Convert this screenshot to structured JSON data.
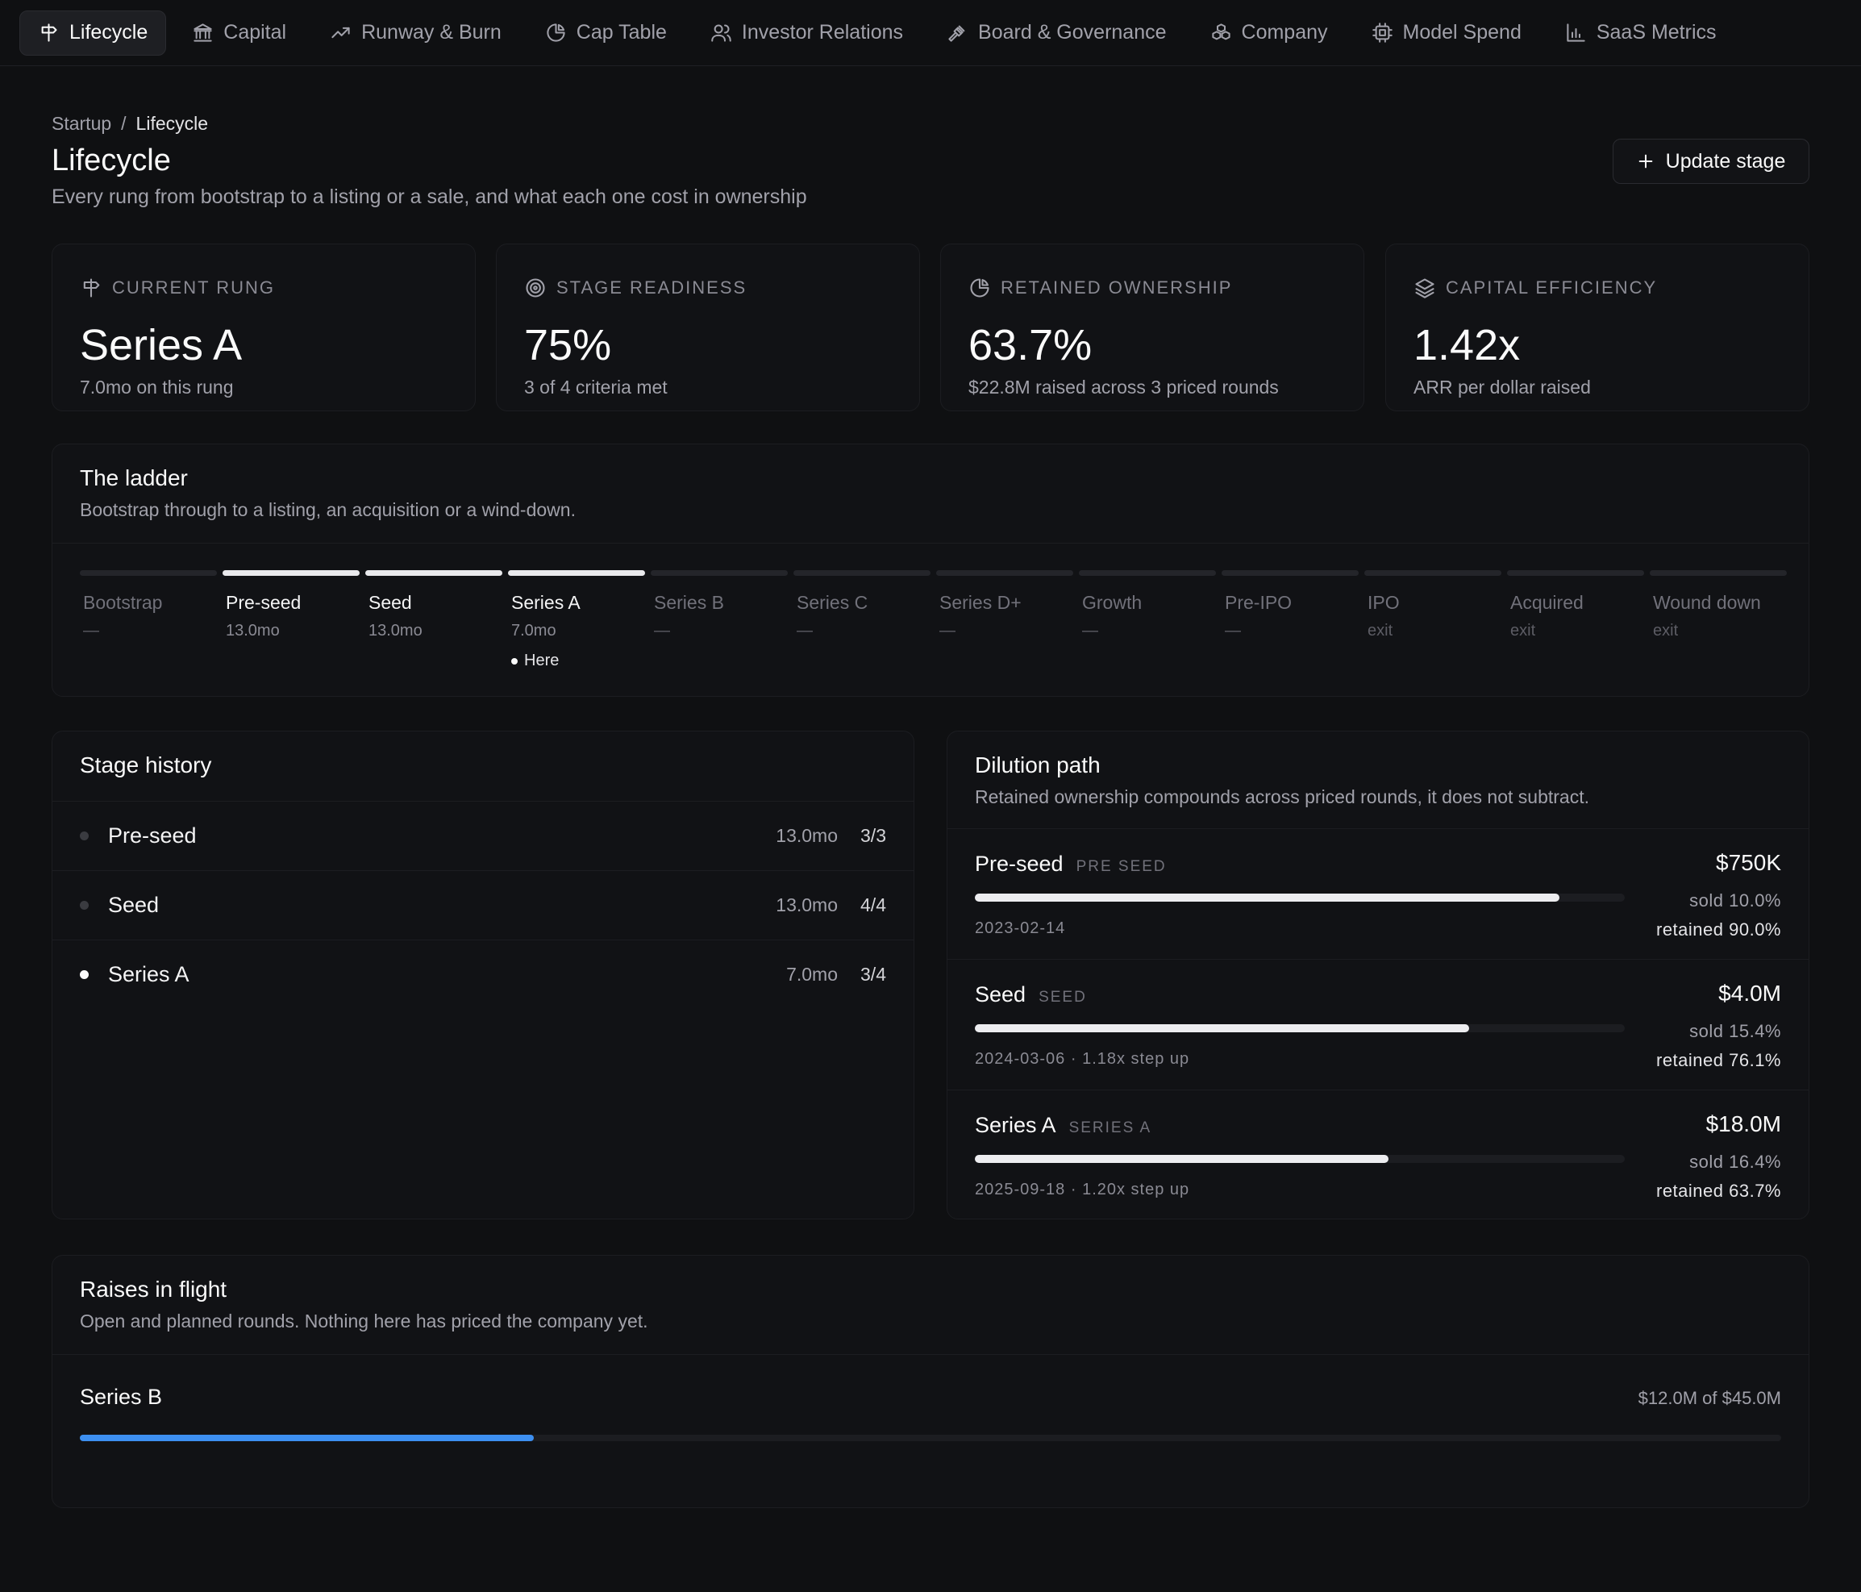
{
  "nav": {
    "tabs": [
      {
        "label": "Lifecycle",
        "icon": "signpost-icon",
        "active": true
      },
      {
        "label": "Capital",
        "icon": "bank-icon"
      },
      {
        "label": "Runway & Burn",
        "icon": "trending-up-icon"
      },
      {
        "label": "Cap Table",
        "icon": "pie-chart-icon"
      },
      {
        "label": "Investor Relations",
        "icon": "users-icon"
      },
      {
        "label": "Board & Governance",
        "icon": "gavel-icon"
      },
      {
        "label": "Company",
        "icon": "boxes-icon"
      },
      {
        "label": "Model Spend",
        "icon": "cpu-icon"
      },
      {
        "label": "SaaS Metrics",
        "icon": "bar-chart-icon"
      }
    ]
  },
  "header": {
    "breadcrumb_root": "Startup",
    "breadcrumb_sep": "/",
    "breadcrumb_current": "Lifecycle",
    "title": "Lifecycle",
    "subtitle": "Every rung from bootstrap to a listing or a sale, and what each one cost in ownership",
    "update_button": "Update stage"
  },
  "stats": [
    {
      "label": "CURRENT RUNG",
      "value": "Series A",
      "sub": "7.0mo on this rung",
      "icon": "signpost-icon"
    },
    {
      "label": "STAGE READINESS",
      "value": "75%",
      "sub": "3 of 4 criteria met",
      "icon": "target-icon"
    },
    {
      "label": "RETAINED OWNERSHIP",
      "value": "63.7%",
      "sub": "$22.8M raised across 3 priced rounds",
      "icon": "pie-chart-icon"
    },
    {
      "label": "CAPITAL EFFICIENCY",
      "value": "1.42x",
      "sub": "ARR per dollar raised",
      "icon": "layers-icon"
    }
  ],
  "ladder": {
    "title": "The ladder",
    "description": "Bootstrap through to a listing, an acquisition or a wind-down.",
    "here_label": "Here",
    "rungs": [
      {
        "name": "Bootstrap",
        "duration": "—",
        "done": false
      },
      {
        "name": "Pre-seed",
        "duration": "13.0mo",
        "done": true
      },
      {
        "name": "Seed",
        "duration": "13.0mo",
        "done": true
      },
      {
        "name": "Series A",
        "duration": "7.0mo",
        "done": true,
        "current": true
      },
      {
        "name": "Series B",
        "duration": "—",
        "done": false
      },
      {
        "name": "Series C",
        "duration": "—",
        "done": false
      },
      {
        "name": "Series D+",
        "duration": "—",
        "done": false
      },
      {
        "name": "Growth",
        "duration": "—",
        "done": false
      },
      {
        "name": "Pre-IPO",
        "duration": "—",
        "done": false
      },
      {
        "name": "IPO",
        "duration": "exit",
        "done": false
      },
      {
        "name": "Acquired",
        "duration": "exit",
        "done": false
      },
      {
        "name": "Wound down",
        "duration": "exit",
        "done": false
      }
    ]
  },
  "history": {
    "title": "Stage history",
    "rows": [
      {
        "name": "Pre-seed",
        "duration": "13.0mo",
        "criteria": "3/3",
        "current": false
      },
      {
        "name": "Seed",
        "duration": "13.0mo",
        "criteria": "4/4",
        "current": false
      },
      {
        "name": "Series A",
        "duration": "7.0mo",
        "criteria": "3/4",
        "current": true
      }
    ]
  },
  "dilution": {
    "title": "Dilution path",
    "description": "Retained ownership compounds across priced rounds, it does not subtract.",
    "rounds": [
      {
        "name": "Pre-seed",
        "tag": "PRE SEED",
        "meta": "2023-02-14",
        "amount": "$750K",
        "sold": "sold 10.0%",
        "retained": "retained 90.0%",
        "retained_pct": 90.0
      },
      {
        "name": "Seed",
        "tag": "SEED",
        "meta": "2024-03-06 · 1.18x step up",
        "amount": "$4.0M",
        "sold": "sold 15.4%",
        "retained": "retained 76.1%",
        "retained_pct": 76.1
      },
      {
        "name": "Series A",
        "tag": "SERIES A",
        "meta": "2025-09-18 · 1.20x step up",
        "amount": "$18.0M",
        "sold": "sold 16.4%",
        "retained": "retained 63.7%",
        "retained_pct": 63.7
      }
    ]
  },
  "raises": {
    "title": "Raises in flight",
    "description": "Open and planned rounds. Nothing here has priced the company yet.",
    "items": [
      {
        "name": "Series B",
        "progress_text": "$12.0M of $45.0M",
        "raised_m": 12.0,
        "target_m": 45.0,
        "bar_color": "#3d8ff0"
      }
    ]
  }
}
